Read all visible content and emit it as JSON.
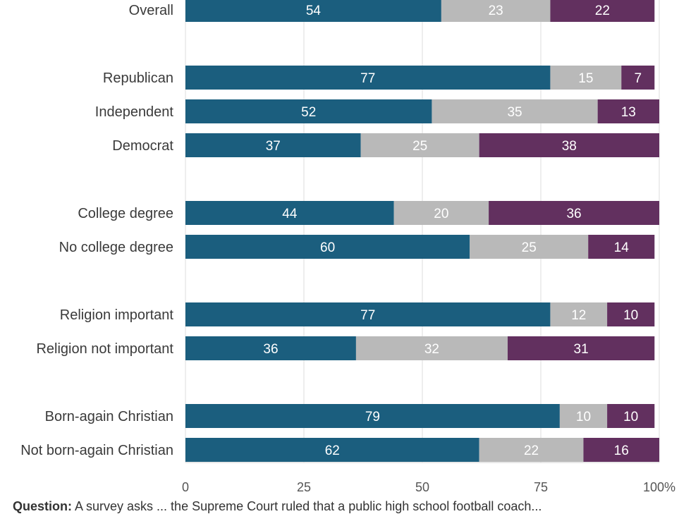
{
  "chart_data": {
    "type": "bar",
    "orientation": "horizontal",
    "stacked": true,
    "categories": [
      "Overall",
      "Republican",
      "Independent",
      "Democrat",
      "College degree",
      "No college degree",
      "Religion important",
      "Religion not important",
      "Born-again Christian",
      "Not born-again Christian"
    ],
    "groups": [
      [
        0
      ],
      [
        1,
        2,
        3
      ],
      [
        4,
        5
      ],
      [
        6,
        7
      ],
      [
        8,
        9
      ]
    ],
    "series": [
      {
        "color": "#1b5e7e",
        "values": [
          54,
          77,
          52,
          37,
          44,
          60,
          77,
          36,
          79,
          62
        ]
      },
      {
        "color": "#b9b9b9",
        "values": [
          23,
          15,
          35,
          25,
          20,
          25,
          12,
          32,
          10,
          22
        ]
      },
      {
        "color": "#62305f",
        "values": [
          22,
          7,
          13,
          38,
          36,
          14,
          10,
          31,
          10,
          16
        ]
      }
    ],
    "xlim": [
      0,
      100
    ],
    "xticks": [
      "0",
      "25",
      "50",
      "75",
      "100%"
    ],
    "grid": true
  },
  "footnote": {
    "bold": "Question:",
    "text": " A survey asks ... the Supreme Court ruled that a public high school football coach..."
  }
}
